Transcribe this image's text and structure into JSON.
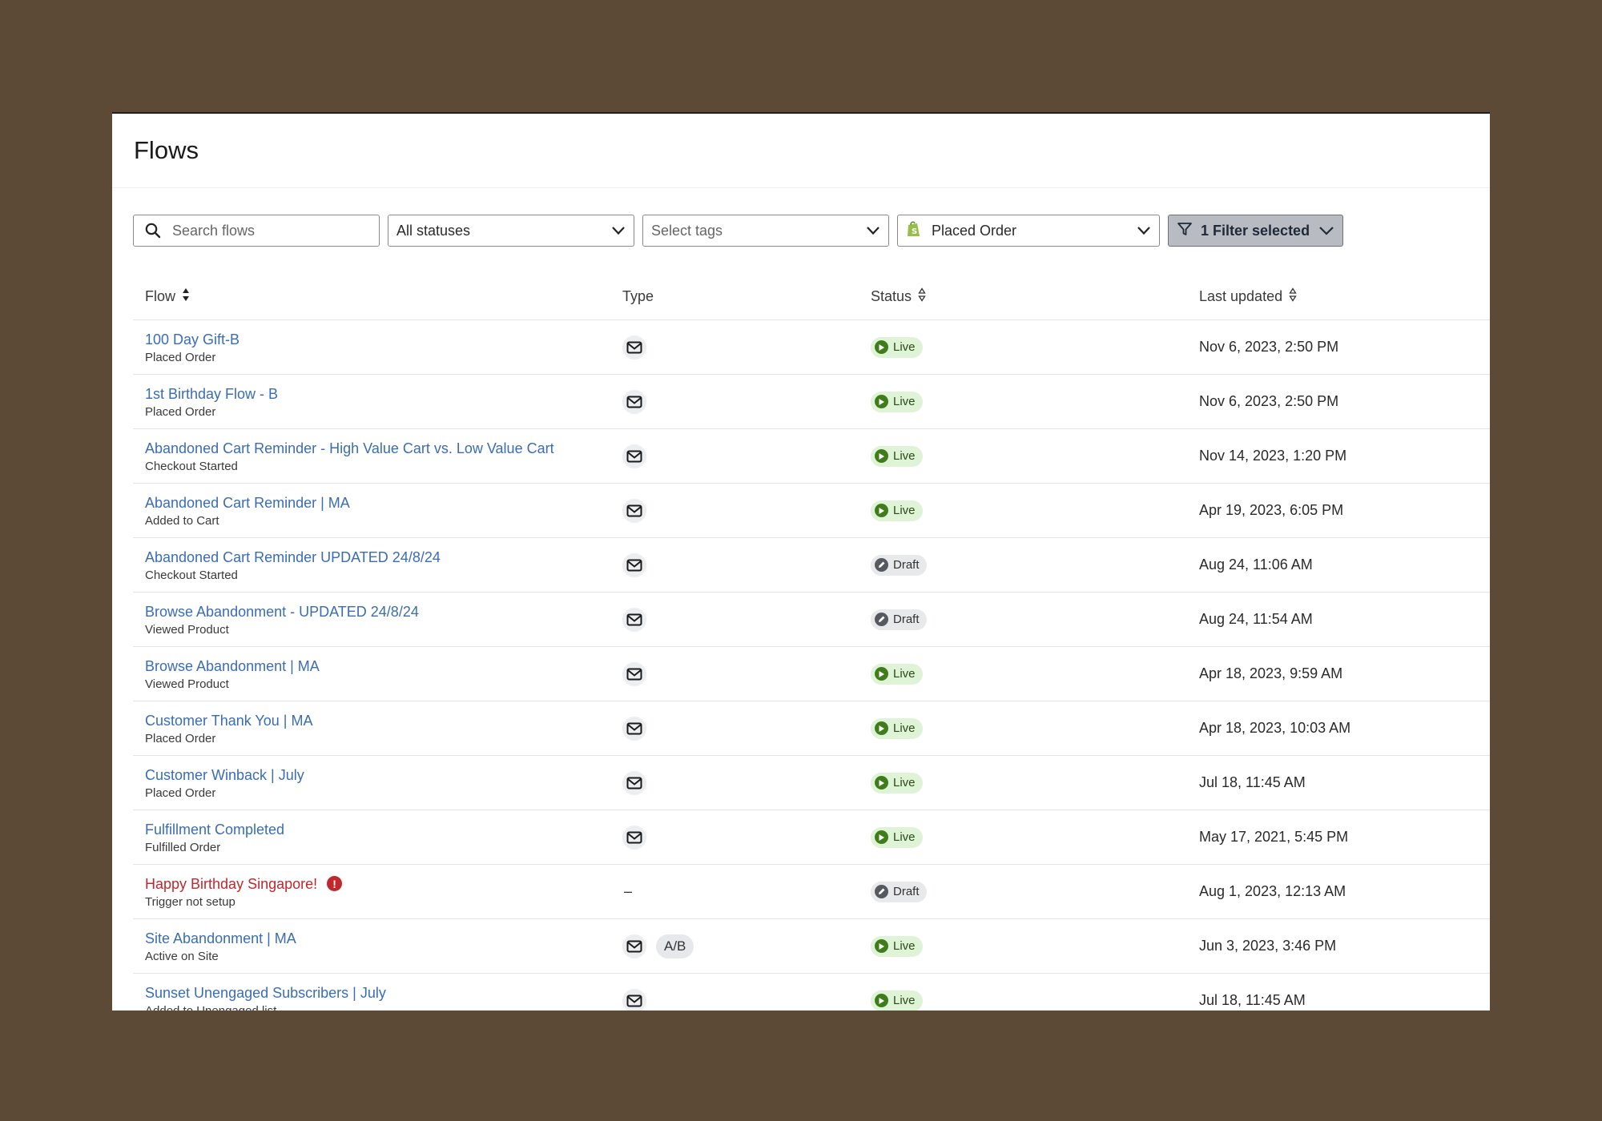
{
  "page": {
    "title": "Flows"
  },
  "toolbar": {
    "search_placeholder": "Search flows",
    "status_select": "All statuses",
    "tags_select": "Select tags",
    "trigger_select": "Placed Order",
    "filter_button": "1 Filter selected"
  },
  "table": {
    "headers": {
      "flow": "Flow",
      "type": "Type",
      "status": "Status",
      "updated": "Last updated"
    },
    "rows": [
      {
        "name": "100 Day Gift-B",
        "trigger": "Placed Order",
        "type": "email",
        "ab": "",
        "status": "Live",
        "updated": "Nov 6, 2023, 2:50 PM"
      },
      {
        "name": "1st Birthday Flow - B",
        "trigger": "Placed Order",
        "type": "email",
        "ab": "",
        "status": "Live",
        "updated": "Nov 6, 2023, 2:50 PM"
      },
      {
        "name": "Abandoned Cart Reminder - High Value Cart vs. Low Value Cart",
        "trigger": "Checkout Started",
        "type": "email",
        "ab": "",
        "status": "Live",
        "updated": "Nov 14, 2023, 1:20 PM"
      },
      {
        "name": "Abandoned Cart Reminder | MA",
        "trigger": "Added to Cart",
        "type": "email",
        "ab": "",
        "status": "Live",
        "updated": "Apr 19, 2023, 6:05 PM"
      },
      {
        "name": "Abandoned Cart Reminder UPDATED 24/8/24",
        "trigger": "Checkout Started",
        "type": "email",
        "ab": "",
        "status": "Draft",
        "updated": "Aug 24, 11:06 AM"
      },
      {
        "name": "Browse Abandonment - UPDATED 24/8/24",
        "trigger": "Viewed Product",
        "type": "email",
        "ab": "",
        "status": "Draft",
        "updated": "Aug 24, 11:54 AM"
      },
      {
        "name": "Browse Abandonment | MA",
        "trigger": "Viewed Product",
        "type": "email",
        "ab": "",
        "status": "Live",
        "updated": "Apr 18, 2023, 9:59 AM"
      },
      {
        "name": "Customer Thank You | MA",
        "trigger": "Placed Order",
        "type": "email",
        "ab": "",
        "status": "Live",
        "updated": "Apr 18, 2023, 10:03 AM"
      },
      {
        "name": "Customer Winback | July",
        "trigger": "Placed Order",
        "type": "email",
        "ab": "",
        "status": "Live",
        "updated": "Jul 18, 11:45 AM"
      },
      {
        "name": "Fulfillment Completed",
        "trigger": "Fulfilled Order",
        "type": "email",
        "ab": "",
        "status": "Live",
        "updated": "May 17, 2021, 5:45 PM"
      },
      {
        "name": "Happy Birthday Singapore!",
        "trigger": "Trigger not setup",
        "type": "none",
        "type_text": "–",
        "ab": "",
        "status": "Draft",
        "updated": "Aug 1, 2023, 12:13 AM",
        "error": true,
        "error_icon": "!"
      },
      {
        "name": "Site Abandonment | MA",
        "trigger": "Active on Site",
        "type": "email",
        "ab": "A/B",
        "status": "Live",
        "updated": "Jun 3, 2023, 3:46 PM"
      },
      {
        "name": "Sunset Unengaged Subscribers | July",
        "trigger": "Added to Unengaged list",
        "type": "email",
        "ab": "",
        "status": "Live",
        "updated": "Jul 18, 11:45 AM"
      }
    ]
  },
  "colors": {
    "link": "#3b6db3",
    "error": "#c0282d",
    "live_bg": "#dff3d6",
    "live_dot": "#3f7d1a",
    "draft_bg": "#e8e9eb"
  },
  "icons": {
    "search": "search-icon",
    "chevron": "chevron-down-icon",
    "shopify": "shopify-icon",
    "filter": "filter-icon",
    "sort": "sort-icon",
    "mail": "mail-icon",
    "play": "play-icon",
    "draft": "draft-icon"
  }
}
